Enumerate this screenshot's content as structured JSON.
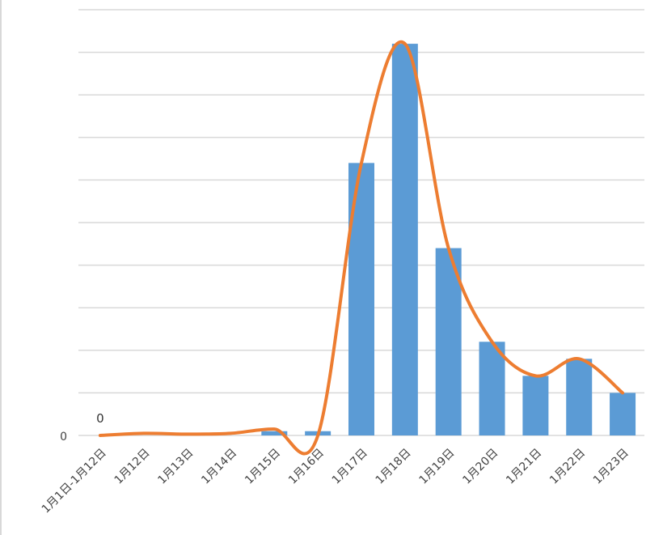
{
  "chart_data": {
    "type": "bar",
    "title": "",
    "xlabel": "",
    "ylabel": "",
    "categories": [
      "1月1日-1月12日",
      "1月12日",
      "1月13日",
      "1月14日",
      "1月15日",
      "1月16日",
      "1月17日",
      "1月18日",
      "1月19日",
      "1月20日",
      "1月21日",
      "1月22日",
      "1月23日"
    ],
    "ylim": [
      0,
      10
    ],
    "y_tick_labels": [
      "0"
    ],
    "grid": true,
    "legend": "none",
    "series": [
      {
        "type": "bar",
        "color": "#5b9bd5",
        "values": [
          0,
          0,
          0,
          0,
          0.1,
          0.1,
          6.4,
          9.2,
          4.4,
          2.2,
          1.4,
          1.8,
          1.0
        ]
      },
      {
        "type": "line",
        "smooth": true,
        "color": "#ed7d31",
        "values": [
          0,
          0.05,
          0.03,
          0.05,
          0.15,
          0,
          6.4,
          9.2,
          4.4,
          2.2,
          1.4,
          1.8,
          1.0
        ]
      }
    ],
    "data_labels": [
      {
        "category_index": 0,
        "text": "0"
      }
    ]
  }
}
